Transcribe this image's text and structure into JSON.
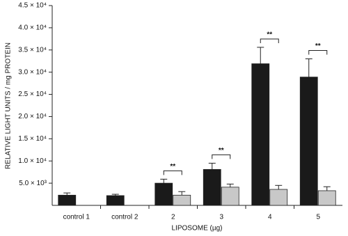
{
  "chart_data": {
    "type": "bar",
    "y_label": "RELATIVE LIGHT UNITS / mg PROTEIN",
    "x_label": "LIPOSOME (µg)",
    "categories": [
      "control 1",
      "control 2",
      "2",
      "3",
      "4",
      "5"
    ],
    "series": [
      {
        "color": "#1a1a1a",
        "values": [
          2300,
          2200,
          5000,
          8100,
          31900,
          28900
        ],
        "errors": [
          500,
          300,
          900,
          1400,
          3700,
          4100
        ]
      },
      {
        "color": "#c8c8c8",
        "values": [
          null,
          null,
          2300,
          4100,
          3600,
          3300
        ],
        "errors": [
          null,
          null,
          800,
          700,
          900,
          900
        ]
      }
    ],
    "significance": [
      null,
      null,
      "**",
      "**",
      "**",
      "**"
    ],
    "ylim": [
      0,
      45000
    ],
    "yticks": [
      {
        "value": 5000,
        "label": "5.0 × 10³"
      },
      {
        "value": 10000,
        "label": "1.0 × 10⁴"
      },
      {
        "value": 15000,
        "label": "1.5 × 10⁴"
      },
      {
        "value": 20000,
        "label": "2.0 × 10⁴"
      },
      {
        "value": 25000,
        "label": "2.5 × 10⁴"
      },
      {
        "value": 30000,
        "label": "3.0 × 10⁴"
      },
      {
        "value": 35000,
        "label": "3.5 × 10⁴"
      },
      {
        "value": 40000,
        "label": "4.0 × 10⁴"
      },
      {
        "value": 45000,
        "label": "4.5 × 10⁴"
      }
    ],
    "grid": false
  }
}
